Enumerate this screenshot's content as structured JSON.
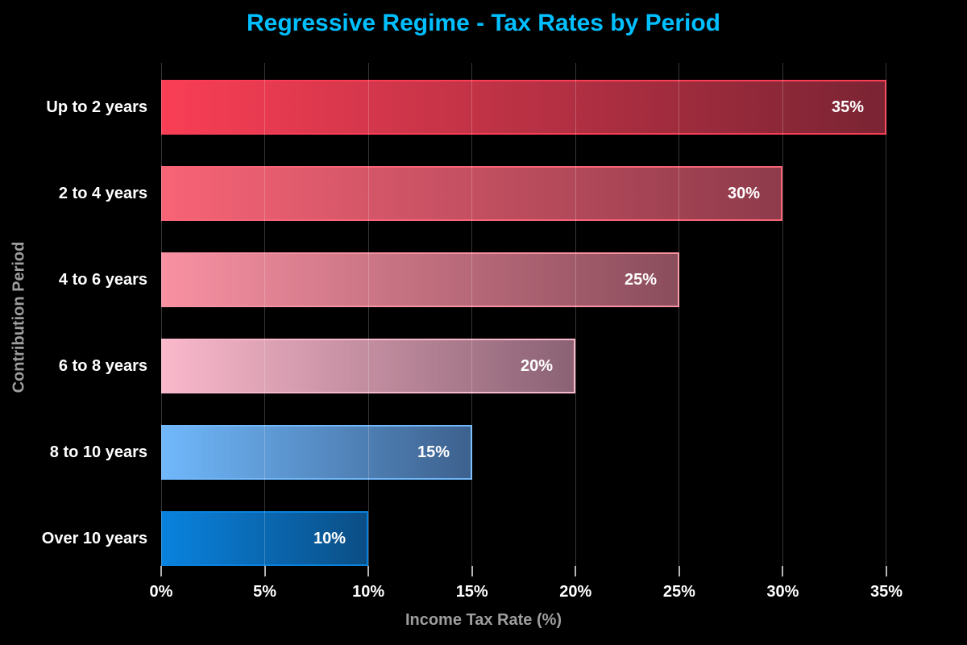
{
  "chart_data": {
    "type": "bar",
    "orientation": "horizontal",
    "title": "Regressive Regime - Tax Rates by Period",
    "xlabel": "Income Tax Rate (%)",
    "ylabel": "Contribution Period",
    "categories": [
      "Up to 2 years",
      "2 to 4 years",
      "4 to 6 years",
      "6 to 8 years",
      "8 to 10 years",
      "Over 10 years"
    ],
    "values": [
      35,
      30,
      25,
      20,
      15,
      10
    ],
    "xlim": [
      0,
      37.5
    ],
    "grid": true,
    "legend": false,
    "x_ticks": [
      {
        "value": 0,
        "label": "0%"
      },
      {
        "value": 5,
        "label": "5%"
      },
      {
        "value": 10,
        "label": "10%"
      },
      {
        "value": 15,
        "label": "15%"
      },
      {
        "value": 20,
        "label": "20%"
      },
      {
        "value": 25,
        "label": "25%"
      },
      {
        "value": 30,
        "label": "30%"
      },
      {
        "value": 35,
        "label": "35%"
      }
    ],
    "bars": [
      {
        "label": "Up to 2 years",
        "value": 35,
        "value_label": "35%",
        "color_start": "#f93e55",
        "color_end": "#7a2433"
      },
      {
        "label": "2 to 4 years",
        "value": 30,
        "value_label": "30%",
        "color_start": "#f76476",
        "color_end": "#8e3b4b"
      },
      {
        "label": "4 to 6 years",
        "value": 25,
        "value_label": "25%",
        "color_start": "#f891a2",
        "color_end": "#8a4d5c"
      },
      {
        "label": "6 to 8 years",
        "value": 20,
        "value_label": "20%",
        "color_start": "#fab8cb",
        "color_end": "#8a6274"
      },
      {
        "label": "8 to 10 years",
        "value": 15,
        "value_label": "15%",
        "color_start": "#70b8fb",
        "color_end": "#3d618e"
      },
      {
        "label": "Over 10 years",
        "value": 10,
        "value_label": "10%",
        "color_start": "#0982de",
        "color_end": "#0b4e85"
      }
    ],
    "colors": {
      "background": "#000000",
      "title": "#00bfff",
      "axis_label": "#9e9e9e",
      "tick_label": "#ffffff",
      "category_label": "#ffffff",
      "value_label": "#ffffff",
      "gridline": "rgba(255,255,255,0.22)",
      "tick_mark": "#b5b5b5"
    }
  }
}
